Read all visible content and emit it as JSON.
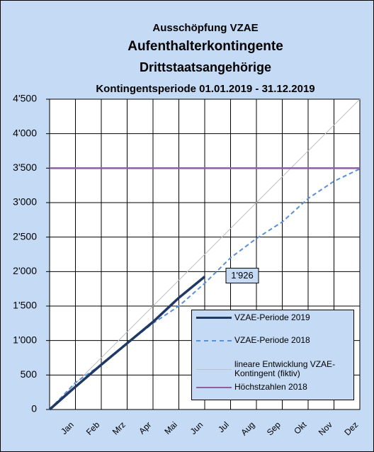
{
  "chart_data": {
    "type": "line",
    "title": "Ausschöpfung VZAE",
    "subtitle": [
      "Aufenthalterkontingente",
      "Drittstaatsangehörige",
      "Kontingentsperiode 01.01.2019 - 31.12.2019"
    ],
    "categories": [
      null,
      "Jan",
      "Feb",
      "Mrz",
      "Apr",
      "Mai",
      "Jun",
      "Jul",
      "Aug",
      "Sep",
      "Okt",
      "Nov",
      "Dez"
    ],
    "series": [
      {
        "name": "VZAE-Periode 2019",
        "color": "#1f3864",
        "style": "solid",
        "width": 3.5,
        "values": [
          0,
          330,
          650,
          960,
          1270,
          1620,
          1926,
          null,
          null,
          null,
          null,
          null,
          null
        ],
        "value_labels": [
          null,
          null,
          null,
          null,
          null,
          null,
          "1'926",
          null,
          null,
          null,
          null,
          null,
          null
        ]
      },
      {
        "name": "VZAE-Periode 2018",
        "color": "#5b8fd6",
        "style": "dashed",
        "width": 2,
        "values": [
          0,
          390,
          650,
          960,
          1250,
          1500,
          1830,
          2200,
          2480,
          2720,
          3060,
          3310,
          3490
        ]
      },
      {
        "name": "lineare Entwicklung VZAE-Kontingent (fiktiv)",
        "color": "#bfbfbf",
        "style": "solid",
        "width": 1,
        "values": [
          0,
          375,
          750,
          1125,
          1500,
          1875,
          2250,
          2625,
          3000,
          3375,
          3750,
          4125,
          4500
        ]
      },
      {
        "name": "Höchstzahlen 2018",
        "color": "#8e5ea2",
        "style": "solid",
        "width": 2.5,
        "values": [
          3500,
          3500,
          3500,
          3500,
          3500,
          3500,
          3500,
          3500,
          3500,
          3500,
          3500,
          3500,
          3500
        ]
      }
    ],
    "ylim": [
      0,
      4500
    ],
    "yticks": [
      0,
      500,
      {
        "value": 1000,
        "label": "1'000"
      },
      {
        "value": 1500,
        "label": "1'500"
      },
      {
        "value": 2000,
        "label": "2'000"
      },
      {
        "value": 2500,
        "label": "2'500"
      },
      {
        "value": 3000,
        "label": "3'000"
      },
      {
        "value": 3500,
        "label": "3'500"
      },
      {
        "value": 4000,
        "label": "4'000"
      },
      {
        "value": 4500,
        "label": "4'500"
      }
    ],
    "grid": true,
    "legend": "lower right"
  }
}
